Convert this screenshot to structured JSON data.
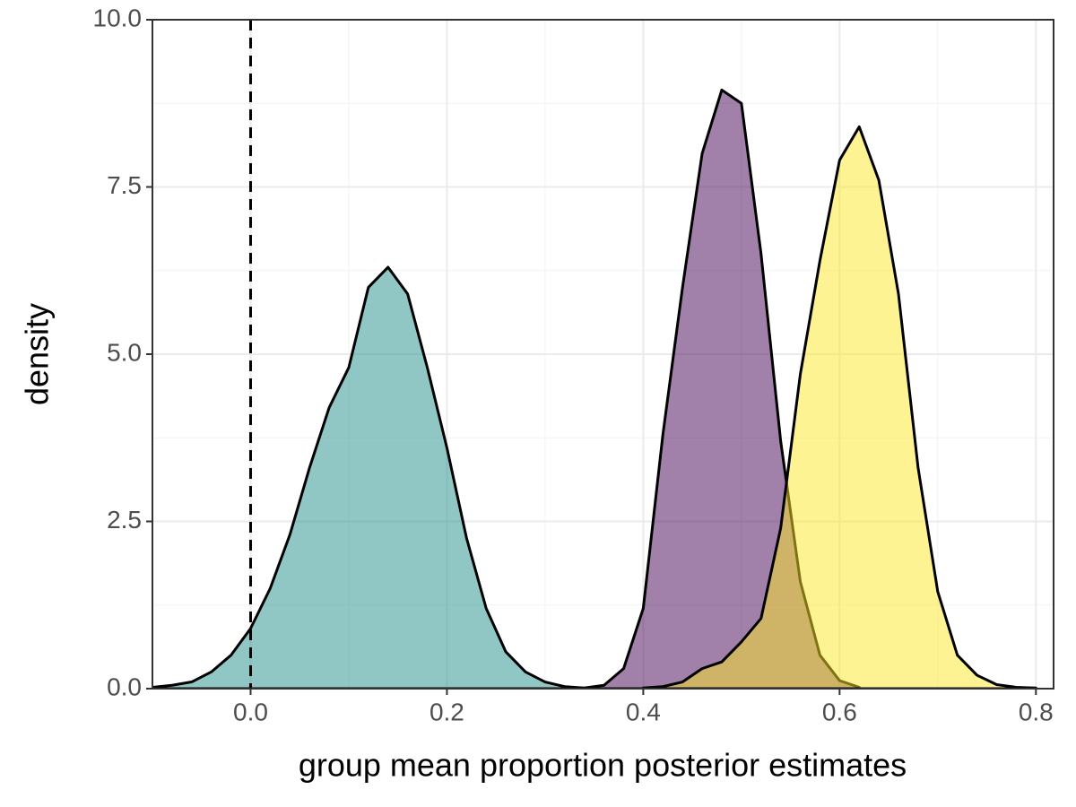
{
  "chart_data": {
    "type": "density",
    "x_label": "group mean proportion posterior estimates",
    "y_label": "density",
    "x": [
      -0.1,
      -0.08,
      -0.06,
      -0.04,
      -0.02,
      0,
      0.02,
      0.04,
      0.06,
      0.08,
      0.1,
      0.12,
      0.14,
      0.16,
      0.18,
      0.2,
      0.22,
      0.24,
      0.26,
      0.28,
      0.3,
      0.32,
      0.34,
      0.36,
      0.38,
      0.4,
      0.42,
      0.44,
      0.46,
      0.48,
      0.5,
      0.52,
      0.54,
      0.56,
      0.58,
      0.6,
      0.62,
      0.64,
      0.66,
      0.68,
      0.7,
      0.72,
      0.74,
      0.76,
      0.78,
      0.8
    ],
    "series": [
      {
        "color": "#21908C",
        "values": [
          0.02,
          0.05,
          0.1,
          0.25,
          0.5,
          0.9,
          1.5,
          2.3,
          3.3,
          4.2,
          4.8,
          6.0,
          6.3,
          5.9,
          4.8,
          3.6,
          2.25,
          1.2,
          0.55,
          0.25,
          0.1,
          0.03,
          0.01,
          null,
          null,
          null,
          null,
          null,
          null,
          null,
          null,
          null,
          null,
          null,
          null,
          null,
          null,
          null,
          null,
          null,
          null,
          null,
          null,
          null,
          null,
          null
        ]
      },
      {
        "color": "#440154",
        "values": [
          null,
          null,
          null,
          null,
          null,
          null,
          null,
          null,
          null,
          null,
          null,
          null,
          null,
          null,
          null,
          null,
          null,
          null,
          null,
          null,
          null,
          null,
          0.01,
          0.05,
          0.3,
          1.2,
          3.8,
          6.0,
          8.0,
          8.95,
          8.75,
          6.5,
          3.7,
          1.6,
          0.5,
          0.12,
          0.02,
          null,
          null,
          null,
          null,
          null,
          null,
          null,
          null,
          null
        ]
      },
      {
        "color": "#FDE725",
        "values": [
          null,
          null,
          null,
          null,
          null,
          null,
          null,
          null,
          null,
          null,
          null,
          null,
          null,
          null,
          null,
          null,
          null,
          null,
          null,
          null,
          null,
          null,
          null,
          null,
          null,
          0.01,
          0.03,
          0.1,
          0.3,
          0.4,
          0.7,
          1.05,
          2.4,
          4.7,
          6.4,
          7.9,
          8.4,
          7.6,
          5.9,
          3.3,
          1.45,
          0.5,
          0.2,
          0.06,
          0.02,
          0.01
        ]
      }
    ],
    "alpha": 0.5,
    "outline_color": "#000000",
    "reference_line": {
      "x": 0,
      "style": "dashed"
    },
    "xlim": [
      -0.1,
      0.818
    ],
    "ylim": [
      0,
      10
    ],
    "xticks": [
      {
        "value": 0,
        "label": "0.0"
      },
      0.2,
      0.4,
      0.6,
      0.8
    ],
    "yticks": [
      {
        "value": 0,
        "label": "0.0"
      },
      2.5,
      {
        "value": 5,
        "label": "5.0"
      },
      7.5,
      {
        "value": 10,
        "label": "10.0"
      }
    ],
    "grid": true
  }
}
